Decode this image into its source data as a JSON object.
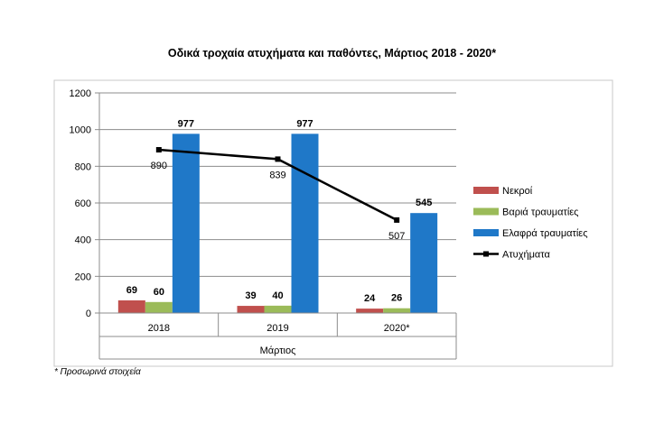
{
  "chart_data": {
    "type": "bar",
    "title": "Οδικά τροχαία ατυχήματα και παθόντες, Μάρτιος 2018 - 2020*",
    "xlabel": "Μάρτιος",
    "ylabel": "",
    "categories": [
      "2018",
      "2019",
      "2020*"
    ],
    "ylim": [
      0,
      1200
    ],
    "yticks": [
      0,
      200,
      400,
      600,
      800,
      1000,
      1200
    ],
    "grid": true,
    "legend_position": "right",
    "series": [
      {
        "name": "Νεκροί",
        "kind": "bar",
        "color": "#c0504d",
        "values": [
          69,
          39,
          24
        ]
      },
      {
        "name": "Βαριά τραυματίες",
        "kind": "bar",
        "color": "#9bbb59",
        "values": [
          60,
          40,
          26
        ]
      },
      {
        "name": "Ελαφρά τραυματίες",
        "kind": "bar",
        "color": "#1f78c8",
        "values": [
          977,
          977,
          545
        ]
      },
      {
        "name": "Ατυχήματα",
        "kind": "line",
        "color": "#000000",
        "values": [
          890,
          839,
          507
        ]
      }
    ]
  },
  "footnote": "* Προσωρινά στοιχεία"
}
